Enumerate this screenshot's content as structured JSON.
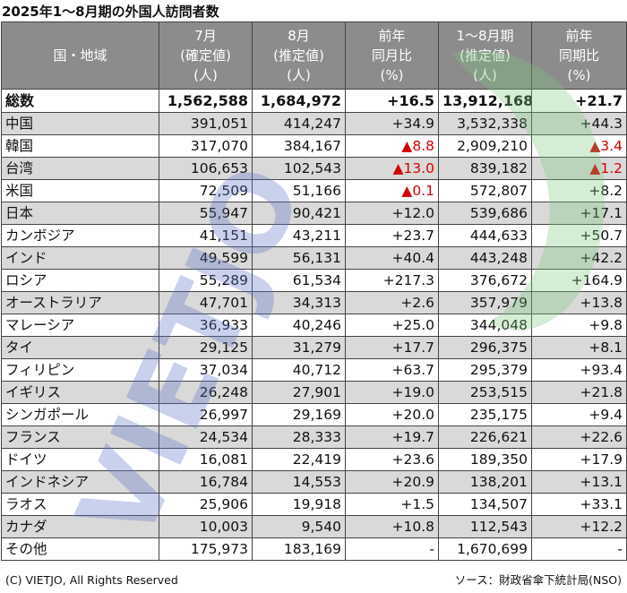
{
  "title": "2025年1～8月期の外国人訪問者数",
  "headers": {
    "region": "国・地域",
    "july": [
      "7月",
      "(確定値)",
      "(人)"
    ],
    "august": [
      "8月",
      "(推定値)",
      "(人)"
    ],
    "yoy_month": [
      "前年",
      "同月比",
      "(%)"
    ],
    "ytd": [
      "1～8月期",
      "(推定値)",
      "(人)"
    ],
    "yoy_period": [
      "前年",
      "同期比",
      "(%)"
    ]
  },
  "total": {
    "name": "総数",
    "july": "1,562,588",
    "august": "1,684,972",
    "yoy_month": "+16.5",
    "ytd": "13,912,168",
    "yoy_period": "+21.7"
  },
  "rows": [
    {
      "name": "中国",
      "july": "391,051",
      "august": "414,247",
      "yoy_month": "+34.9",
      "ytd": "3,532,338",
      "yoy_period": "+44.3"
    },
    {
      "name": "韓国",
      "july": "317,070",
      "august": "384,167",
      "yoy_month": "▲8.8",
      "ytd": "2,909,210",
      "yoy_period": "▲3.4"
    },
    {
      "name": "台湾",
      "july": "106,653",
      "august": "102,543",
      "yoy_month": "▲13.0",
      "ytd": "839,182",
      "yoy_period": "▲1.2"
    },
    {
      "name": "米国",
      "july": "72,509",
      "august": "51,166",
      "yoy_month": "▲0.1",
      "ytd": "572,807",
      "yoy_period": "+8.2"
    },
    {
      "name": "日本",
      "july": "55,947",
      "august": "90,421",
      "yoy_month": "+12.0",
      "ytd": "539,686",
      "yoy_period": "+17.1"
    },
    {
      "name": "カンボジア",
      "july": "41,151",
      "august": "43,211",
      "yoy_month": "+23.7",
      "ytd": "444,633",
      "yoy_period": "+50.7"
    },
    {
      "name": "インド",
      "july": "49,599",
      "august": "56,131",
      "yoy_month": "+40.4",
      "ytd": "443,248",
      "yoy_period": "+42.2"
    },
    {
      "name": "ロシア",
      "july": "55,289",
      "august": "61,534",
      "yoy_month": "+217.3",
      "ytd": "376,672",
      "yoy_period": "+164.9"
    },
    {
      "name": "オーストラリア",
      "july": "47,701",
      "august": "34,313",
      "yoy_month": "+2.6",
      "ytd": "357,979",
      "yoy_period": "+13.8"
    },
    {
      "name": "マレーシア",
      "july": "36,933",
      "august": "40,246",
      "yoy_month": "+25.0",
      "ytd": "344,048",
      "yoy_period": "+9.8"
    },
    {
      "name": "タイ",
      "july": "29,125",
      "august": "31,279",
      "yoy_month": "+17.7",
      "ytd": "296,375",
      "yoy_period": "+8.1"
    },
    {
      "name": "フィリピン",
      "july": "37,034",
      "august": "40,712",
      "yoy_month": "+63.7",
      "ytd": "295,379",
      "yoy_period": "+93.4"
    },
    {
      "name": "イギリス",
      "july": "26,248",
      "august": "27,901",
      "yoy_month": "+19.0",
      "ytd": "253,515",
      "yoy_period": "+21.8"
    },
    {
      "name": "シンガポール",
      "july": "26,997",
      "august": "29,169",
      "yoy_month": "+20.0",
      "ytd": "235,175",
      "yoy_period": "+9.4"
    },
    {
      "name": "フランス",
      "july": "24,534",
      "august": "28,333",
      "yoy_month": "+19.7",
      "ytd": "226,621",
      "yoy_period": "+22.6"
    },
    {
      "name": "ドイツ",
      "july": "16,081",
      "august": "22,419",
      "yoy_month": "+23.6",
      "ytd": "189,350",
      "yoy_period": "+17.9"
    },
    {
      "name": "インドネシア",
      "july": "16,784",
      "august": "14,553",
      "yoy_month": "+20.9",
      "ytd": "138,201",
      "yoy_period": "+13.1"
    },
    {
      "name": "ラオス",
      "july": "25,906",
      "august": "19,918",
      "yoy_month": "+1.5",
      "ytd": "134,507",
      "yoy_period": "+33.1"
    },
    {
      "name": "カナダ",
      "july": "10,003",
      "august": "9,540",
      "yoy_month": "+10.8",
      "ytd": "112,543",
      "yoy_period": "+12.2"
    },
    {
      "name": "その他",
      "july": "175,973",
      "august": "183,169",
      "yoy_month": "-",
      "ytd": "1,670,699",
      "yoy_period": "-"
    }
  ],
  "watermark": "VIETJO",
  "footer": {
    "left": "(C) VIETJO, All Rights Reserved",
    "right": "ソース：財政省傘下統計局(NSO)"
  },
  "colors": {
    "header_bg": "#8c8c8c",
    "band_gray": "#d9d9d9",
    "negative": "#d20000",
    "watermark_blue": "#5a73c8",
    "watermark_green": "#7cc47c"
  }
}
